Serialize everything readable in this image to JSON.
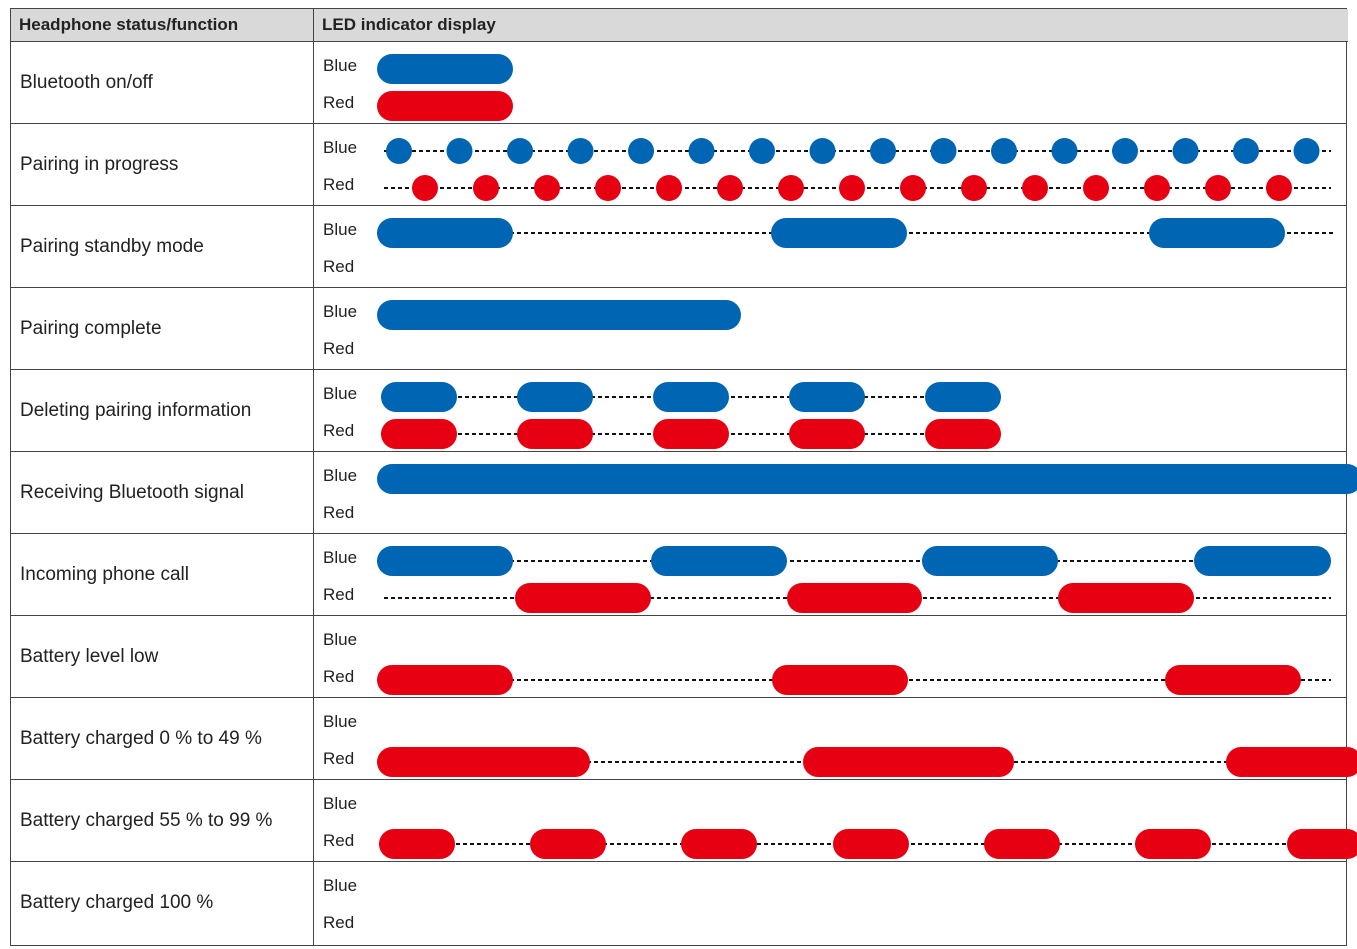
{
  "header": {
    "status_col": "Headphone status/function",
    "led_col": "LED indicator display"
  },
  "labels": {
    "blue": "Blue",
    "red": "Red"
  },
  "colors": {
    "blue": "#0066b3",
    "red": "#e60012",
    "dash": "#111111"
  },
  "rows": [
    {
      "status": "Bluetooth on/off",
      "blue": {
        "kind": "bars",
        "segs": [
          [
            376,
            512
          ]
        ]
      },
      "red": {
        "kind": "bars",
        "segs": [
          [
            376,
            512
          ]
        ]
      }
    },
    {
      "status": "Pairing in progress",
      "blue": {
        "kind": "dots",
        "start": 398,
        "step": 60.5,
        "count": 16,
        "dash": [
          383,
          1330
        ]
      },
      "red": {
        "kind": "dots",
        "start": 424,
        "step": 61,
        "count": 15,
        "dash": [
          383,
          1330
        ]
      }
    },
    {
      "status": "Pairing standby mode",
      "blue": {
        "kind": "bars",
        "segs": [
          [
            376,
            512
          ],
          [
            770,
            906
          ],
          [
            1148,
            1284
          ]
        ],
        "dash": [
          376,
          1333
        ]
      },
      "red": null
    },
    {
      "status": "Pairing complete",
      "blue": {
        "kind": "bars",
        "segs": [
          [
            376,
            740
          ]
        ]
      },
      "red": null
    },
    {
      "status": "Deleting pairing information",
      "blue": {
        "kind": "bars",
        "segs": [
          [
            380,
            456
          ],
          [
            516,
            592
          ],
          [
            652,
            728
          ],
          [
            788,
            864
          ],
          [
            924,
            1000
          ]
        ],
        "dash": [
          380,
          1000
        ]
      },
      "red": {
        "kind": "bars",
        "segs": [
          [
            380,
            456
          ],
          [
            516,
            592
          ],
          [
            652,
            728
          ],
          [
            788,
            864
          ],
          [
            924,
            1000
          ]
        ],
        "dash": [
          380,
          1000
        ]
      }
    },
    {
      "status": "Receiving Bluetooth signal",
      "blue": {
        "kind": "bars",
        "segs": [
          [
            376,
            1346
          ]
        ],
        "openRight": true
      },
      "red": null
    },
    {
      "status": "Incoming phone call",
      "blue": {
        "kind": "bars",
        "segs": [
          [
            376,
            512
          ],
          [
            650,
            786
          ],
          [
            921,
            1057
          ],
          [
            1193,
            1330
          ]
        ],
        "dash": [
          376,
          1330
        ]
      },
      "red": {
        "kind": "bars",
        "segs": [
          [
            514,
            650
          ],
          [
            786,
            921
          ],
          [
            1057,
            1193
          ]
        ],
        "dash": [
          383,
          1330
        ]
      }
    },
    {
      "status": "Battery level low",
      "blue": null,
      "red": {
        "kind": "bars",
        "segs": [
          [
            376,
            512
          ],
          [
            771,
            907
          ],
          [
            1164,
            1300
          ]
        ],
        "dash": [
          376,
          1330
        ]
      }
    },
    {
      "status": "Battery charged 0 % to 49 %",
      "blue": null,
      "red": {
        "kind": "bars",
        "segs": [
          [
            376,
            589
          ],
          [
            802,
            1013
          ],
          [
            1225,
            1346
          ]
        ],
        "dash": [
          376,
          1346
        ],
        "openRight": true
      }
    },
    {
      "status": "Battery charged 55 % to 99 %",
      "blue": null,
      "red": {
        "kind": "bars",
        "segs": [
          [
            378,
            454
          ],
          [
            529,
            605
          ],
          [
            680,
            756
          ],
          [
            832,
            908
          ],
          [
            983,
            1059
          ],
          [
            1134,
            1210
          ],
          [
            1286,
            1346
          ]
        ],
        "dash": [
          378,
          1346
        ],
        "openRight": true
      }
    },
    {
      "status": "Battery charged 100 %",
      "blue": null,
      "red": null
    }
  ]
}
